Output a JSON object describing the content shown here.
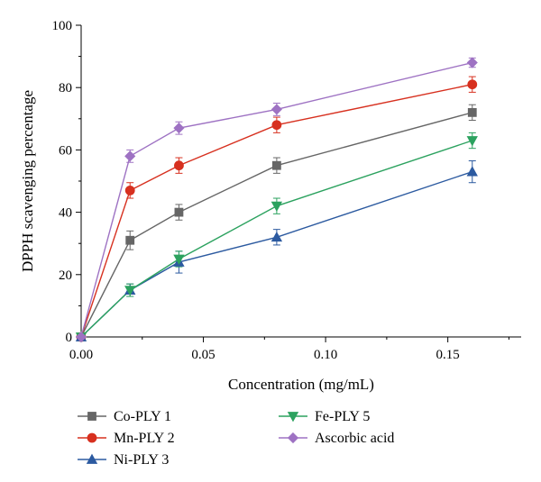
{
  "chart_data": {
    "type": "line",
    "title": "",
    "xlabel": "Concentration (mg/mL)",
    "ylabel": "DPPH scavenging percentage",
    "xlim": [
      0,
      0.18
    ],
    "ylim": [
      0,
      100
    ],
    "x_ticks": [
      0.0,
      0.05,
      0.1,
      0.15
    ],
    "x_tick_labels": [
      "0.00",
      "0.05",
      "0.10",
      "0.15"
    ],
    "y_ticks": [
      0,
      20,
      40,
      60,
      80,
      100
    ],
    "y_tick_labels": [
      "0",
      "20",
      "40",
      "60",
      "80",
      "100"
    ],
    "x": [
      0,
      0.02,
      0.04,
      0.08,
      0.16
    ],
    "grid": false,
    "legend_position": "bottom",
    "series": [
      {
        "name": "Co-PLY 1",
        "color": "#666666",
        "marker": "square",
        "values": [
          0,
          31,
          40,
          55,
          72
        ],
        "errors": [
          0,
          3,
          2.5,
          2.5,
          2.5
        ]
      },
      {
        "name": "Mn-PLY 2",
        "color": "#d7301f",
        "marker": "circle",
        "values": [
          0,
          47,
          55,
          68,
          81
        ],
        "errors": [
          0,
          2.5,
          2.5,
          2.5,
          2.5
        ]
      },
      {
        "name": "Ni-PLY 3",
        "color": "#2c5aa0",
        "marker": "triangle-up",
        "values": [
          0,
          15,
          24,
          32,
          53
        ],
        "errors": [
          0,
          2,
          3.5,
          2.5,
          3.5
        ]
      },
      {
        "name": "Fe-PLY 5",
        "color": "#2ca25f",
        "marker": "triangle-down",
        "values": [
          0,
          15,
          25,
          42,
          63
        ],
        "errors": [
          0,
          2,
          2.5,
          2.5,
          2.5
        ]
      },
      {
        "name": "Ascorbic acid",
        "color": "#9e72c3",
        "marker": "diamond",
        "values": [
          0,
          58,
          67,
          73,
          88
        ],
        "errors": [
          0,
          2,
          2,
          2,
          1.5
        ]
      }
    ]
  }
}
